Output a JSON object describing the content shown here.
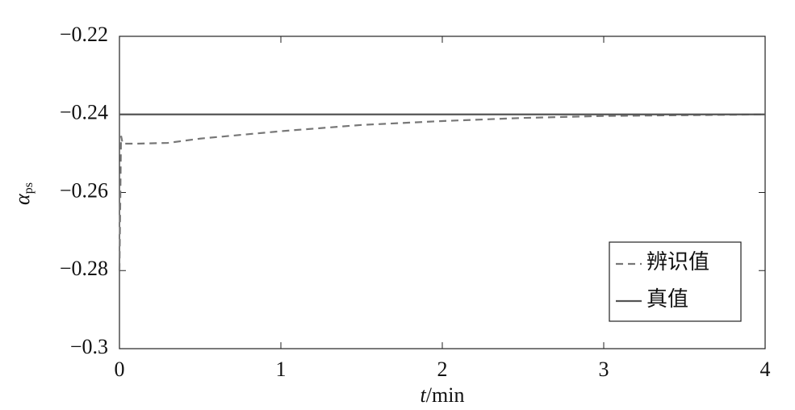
{
  "chart_data": {
    "type": "line",
    "ylabel": "α",
    "ylabel_sub": "ps",
    "xlabel_var": "t",
    "xlabel_unit": "/min",
    "x": [
      0,
      0.01,
      0.02,
      0.05,
      0.1,
      0.3,
      0.5,
      1,
      1.5,
      2,
      2.5,
      3,
      3.5,
      4
    ],
    "series": [
      {
        "name": "辨识值",
        "color": "#777777",
        "dash": true,
        "values": [
          -0.28,
          -0.2455,
          -0.2475,
          -0.2475,
          -0.2475,
          -0.2473,
          -0.2462,
          -0.2443,
          -0.2427,
          -0.2417,
          -0.2409,
          -0.2404,
          -0.2402,
          -0.24
        ]
      },
      {
        "name": "真值",
        "color": "#555555",
        "dash": false,
        "values": [
          -0.24,
          -0.24,
          -0.24,
          -0.24,
          -0.24,
          -0.24,
          -0.24,
          -0.24,
          -0.24,
          -0.24,
          -0.24,
          -0.24,
          -0.24,
          -0.24
        ]
      }
    ],
    "xlim": [
      0,
      4
    ],
    "xticks": [
      0,
      1,
      2,
      3,
      4
    ],
    "ylim": [
      -0.3,
      -0.22
    ],
    "yticks": [
      {
        "value": -0.3,
        "label": "−0.3"
      },
      {
        "value": -0.28,
        "label": "−0.28"
      },
      {
        "value": -0.26,
        "label": "−0.26"
      },
      {
        "value": -0.24,
        "label": "−0.24"
      },
      {
        "value": -0.22,
        "label": "−0.22"
      }
    ],
    "legend": "lower right",
    "grid": false
  }
}
